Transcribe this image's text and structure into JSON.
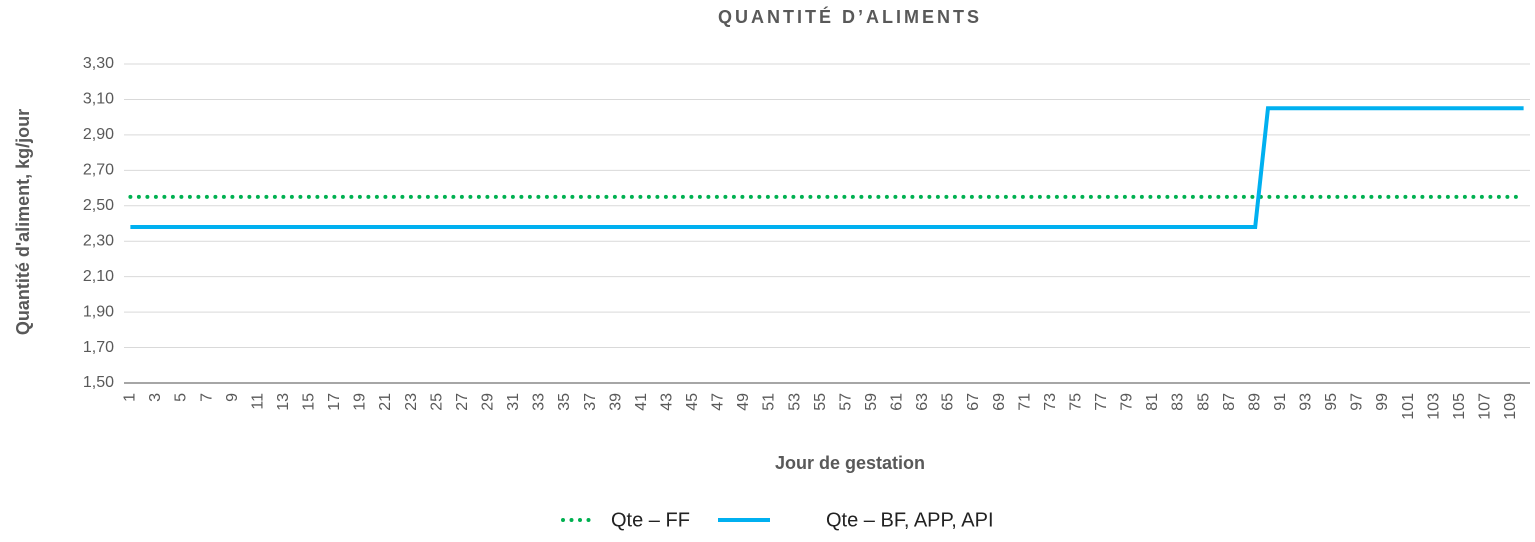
{
  "chart_data": {
    "type": "line",
    "title": "QUANTITÉ D’ALIMENTS",
    "y_label": "Quantité d'aliment, kg/jour",
    "x_label": "Jour de gestation",
    "categories": [
      "1",
      null,
      "3",
      null,
      "5",
      null,
      "7",
      null,
      "9",
      null,
      "11",
      null,
      "13",
      null,
      "15",
      null,
      "17",
      null,
      "19",
      null,
      "21",
      null,
      "23",
      null,
      "25",
      null,
      "27",
      null,
      "29",
      null,
      "31",
      null,
      "33",
      null,
      "35",
      null,
      "37",
      null,
      "39",
      null,
      "41",
      null,
      "43",
      null,
      "45",
      null,
      "47",
      null,
      "49",
      null,
      "51",
      null,
      "53",
      null,
      "55",
      null,
      "57",
      null,
      "59",
      null,
      "61",
      null,
      "63",
      null,
      "65",
      null,
      "67",
      null,
      "69",
      null,
      "71",
      null,
      "73",
      null,
      "75",
      null,
      "77",
      null,
      "79",
      null,
      "81",
      null,
      "83",
      null,
      "85",
      null,
      "87",
      null,
      "89",
      null,
      "91",
      null,
      "93",
      null,
      "95",
      null,
      "97",
      null,
      "99",
      null,
      "101",
      null,
      "103",
      null,
      "105",
      null,
      "107",
      null,
      "109",
      null
    ],
    "series": [
      {
        "name": "Qte – FF",
        "color": "#00b050",
        "style": "dotted",
        "values": [
          2.55,
          2.55,
          2.55,
          2.55,
          2.55,
          2.55,
          2.55,
          2.55,
          2.55,
          2.55,
          2.55,
          2.55,
          2.55,
          2.55,
          2.55,
          2.55,
          2.55,
          2.55,
          2.55,
          2.55,
          2.55,
          2.55,
          2.55,
          2.55,
          2.55,
          2.55,
          2.55,
          2.55,
          2.55,
          2.55,
          2.55,
          2.55,
          2.55,
          2.55,
          2.55,
          2.55,
          2.55,
          2.55,
          2.55,
          2.55,
          2.55,
          2.55,
          2.55,
          2.55,
          2.55,
          2.55,
          2.55,
          2.55,
          2.55,
          2.55,
          2.55,
          2.55,
          2.55,
          2.55,
          2.55,
          2.55,
          2.55,
          2.55,
          2.55,
          2.55,
          2.55,
          2.55,
          2.55,
          2.55,
          2.55,
          2.55,
          2.55,
          2.55,
          2.55,
          2.55,
          2.55,
          2.55,
          2.55,
          2.55,
          2.55,
          2.55,
          2.55,
          2.55,
          2.55,
          2.55,
          2.55,
          2.55,
          2.55,
          2.55,
          2.55,
          2.55,
          2.55,
          2.55,
          2.55,
          2.55,
          2.55,
          2.55,
          2.55,
          2.55,
          2.55,
          2.55,
          2.55,
          2.55,
          2.55,
          2.55,
          2.55,
          2.55,
          2.55,
          2.55,
          2.55,
          2.55,
          2.55,
          2.55,
          2.55,
          2.55
        ]
      },
      {
        "name": "Qte – BF, APP, API",
        "color": "#00b0f0",
        "style": "solid",
        "values": [
          2.38,
          2.38,
          2.38,
          2.38,
          2.38,
          2.38,
          2.38,
          2.38,
          2.38,
          2.38,
          2.38,
          2.38,
          2.38,
          2.38,
          2.38,
          2.38,
          2.38,
          2.38,
          2.38,
          2.38,
          2.38,
          2.38,
          2.38,
          2.38,
          2.38,
          2.38,
          2.38,
          2.38,
          2.38,
          2.38,
          2.38,
          2.38,
          2.38,
          2.38,
          2.38,
          2.38,
          2.38,
          2.38,
          2.38,
          2.38,
          2.38,
          2.38,
          2.38,
          2.38,
          2.38,
          2.38,
          2.38,
          2.38,
          2.38,
          2.38,
          2.38,
          2.38,
          2.38,
          2.38,
          2.38,
          2.38,
          2.38,
          2.38,
          2.38,
          2.38,
          2.38,
          2.38,
          2.38,
          2.38,
          2.38,
          2.38,
          2.38,
          2.38,
          2.38,
          2.38,
          2.38,
          2.38,
          2.38,
          2.38,
          2.38,
          2.38,
          2.38,
          2.38,
          2.38,
          2.38,
          2.38,
          2.38,
          2.38,
          2.38,
          2.38,
          2.38,
          2.38,
          2.38,
          2.38,
          3.05,
          3.05,
          3.05,
          3.05,
          3.05,
          3.05,
          3.05,
          3.05,
          3.05,
          3.05,
          3.05,
          3.05,
          3.05,
          3.05,
          3.05,
          3.05,
          3.05,
          3.05,
          3.05,
          3.05,
          3.05
        ]
      }
    ],
    "ylim": [
      1.5,
      3.3
    ],
    "yticks": [
      {
        "value": 1.5,
        "label": "1,50"
      },
      {
        "value": 1.7,
        "label": "1,70"
      },
      {
        "value": 1.9,
        "label": "1,90"
      },
      {
        "value": 2.1,
        "label": "2,10"
      },
      {
        "value": 2.3,
        "label": "2,30"
      },
      {
        "value": 2.5,
        "label": "2,50"
      },
      {
        "value": 2.7,
        "label": "2,70"
      },
      {
        "value": 2.9,
        "label": "2,90"
      },
      {
        "value": 3.1,
        "label": "3,10"
      },
      {
        "value": 3.3,
        "label": "3,30"
      }
    ],
    "grid": true,
    "legend": "bottom"
  }
}
